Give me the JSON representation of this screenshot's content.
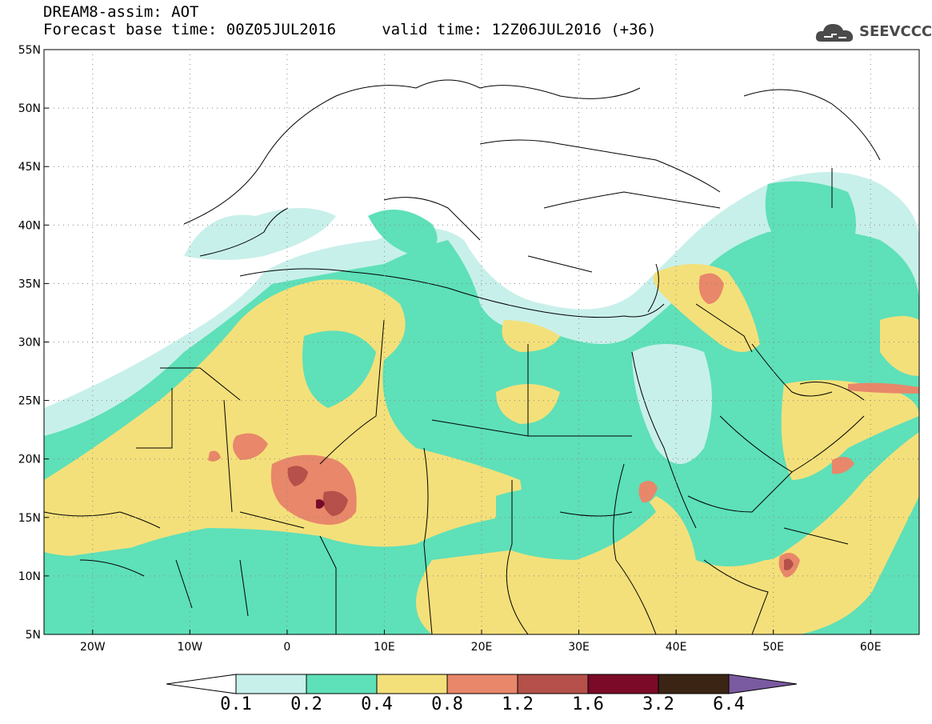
{
  "header": {
    "title_line1": "DREAM8-assim: AOT",
    "title_line2": "Forecast base time: 00Z05JUL2016     valid time: 12Z06JUL2016 (+36)"
  },
  "logo": {
    "text": "SEEVCCC",
    "icon": "cloud-icon",
    "color": "#4a4a4a"
  },
  "map": {
    "lon_range": [
      -25,
      65
    ],
    "lat_range": [
      5,
      55
    ],
    "lat_labels": [
      "55N",
      "50N",
      "45N",
      "40N",
      "35N",
      "30N",
      "25N",
      "20N",
      "15N",
      "10N",
      "5N"
    ],
    "lon_labels": [
      "20W",
      "10W",
      "0",
      "10E",
      "20E",
      "30E",
      "40E",
      "50E",
      "60E"
    ],
    "grid": true,
    "projection": "lat-lon"
  },
  "colorbar": {
    "labels": [
      "0.1",
      "0.2",
      "0.4",
      "0.8",
      "1.2",
      "1.6",
      "3.2",
      "6.4"
    ],
    "colors": [
      "#c8f0ea",
      "#5ee0b8",
      "#f4e07a",
      "#e8876a",
      "#b5504a",
      "#7a0a28",
      "#3c2414",
      "#7a5aa0"
    ]
  }
}
